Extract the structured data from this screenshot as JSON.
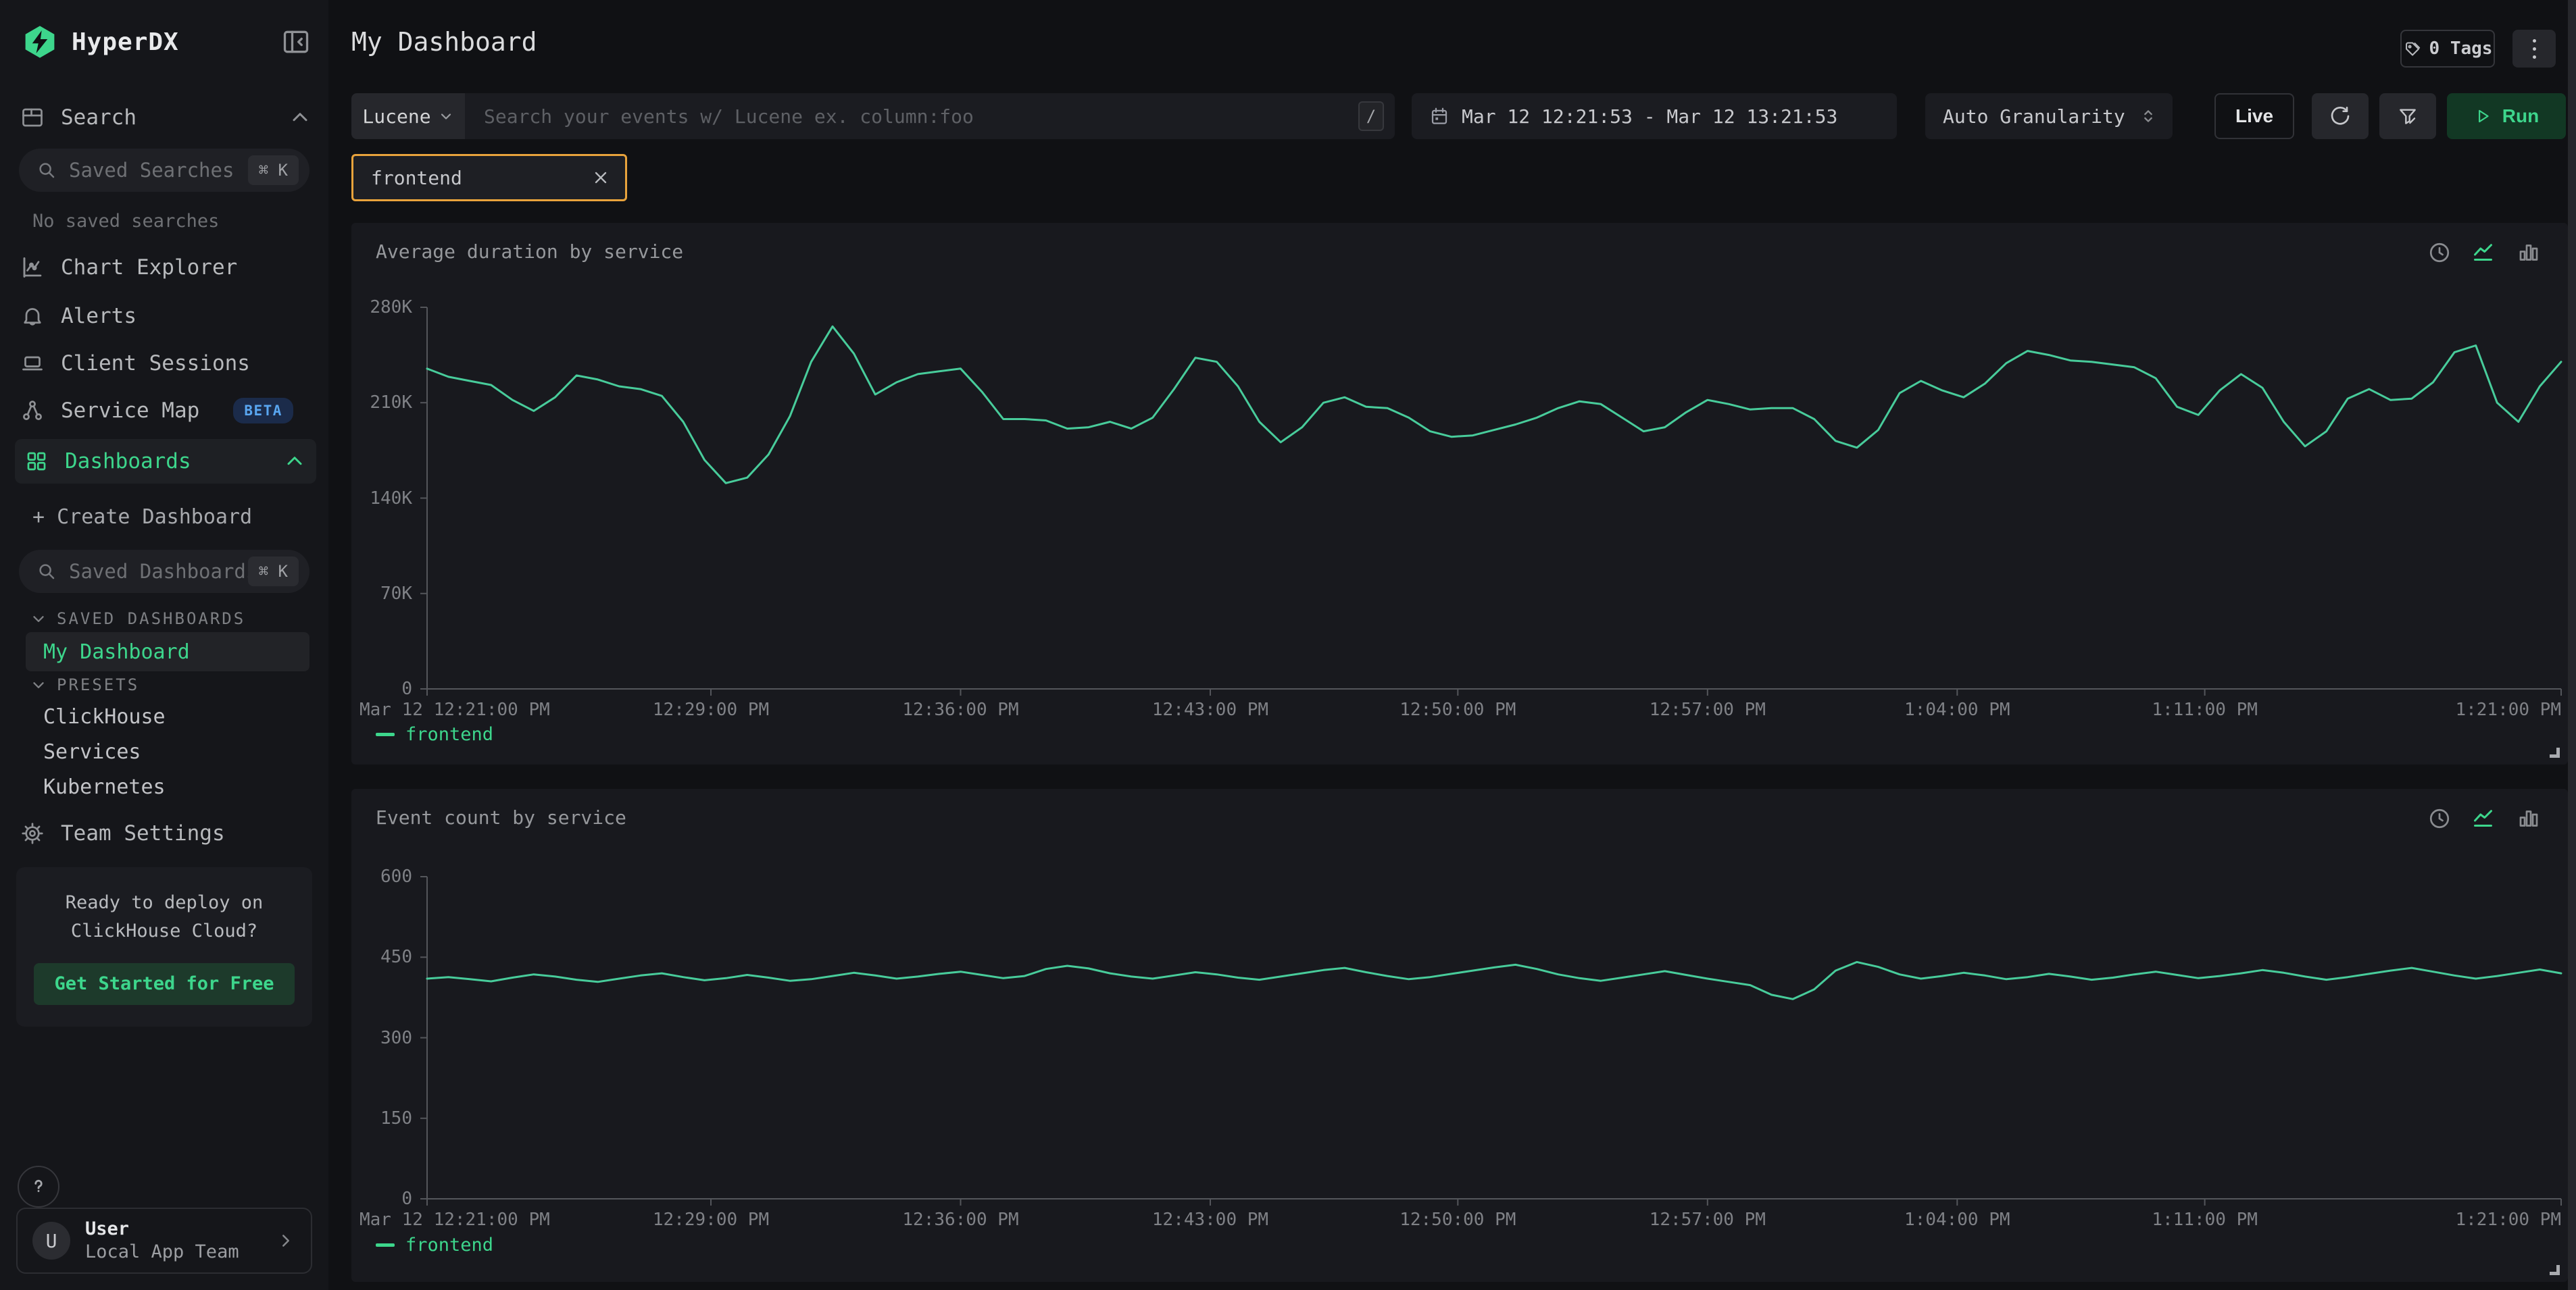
{
  "app": {
    "name": "HyperDX"
  },
  "sidebar": {
    "search_section": "Search",
    "saved_searches_placeholder": "Saved Searches",
    "shortcut": "⌘ K",
    "no_saved_searches": "No saved searches",
    "items": [
      {
        "label": "Chart Explorer"
      },
      {
        "label": "Alerts"
      },
      {
        "label": "Client Sessions"
      },
      {
        "label": "Service Map",
        "badge": "BETA"
      },
      {
        "label": "Dashboards"
      }
    ],
    "create_dashboard": "+ Create Dashboard",
    "saved_dashboards_placeholder": "Saved Dashboards",
    "sections": {
      "saved": "SAVED DASHBOARDS",
      "presets": "PRESETS"
    },
    "saved_dashboards": [
      "My Dashboard"
    ],
    "presets": [
      "ClickHouse",
      "Services",
      "Kubernetes"
    ],
    "team_settings": "Team Settings",
    "promo": {
      "text": "Ready to deploy on ClickHouse Cloud?",
      "cta": "Get Started for Free"
    },
    "user": {
      "initial": "U",
      "name": "User",
      "team": "Local App Team"
    }
  },
  "header": {
    "title": "My Dashboard",
    "tags_button": "0 Tags"
  },
  "toolbar": {
    "language": "Lucene",
    "search_placeholder": "Search your events w/ Lucene ex. column:foo",
    "slash_shortcut": "/",
    "time_range": "Mar 12 12:21:53 - Mar 12 13:21:53",
    "granularity": "Auto Granularity",
    "live": "Live",
    "run": "Run"
  },
  "filter_chip": {
    "value": "frontend"
  },
  "colors": {
    "accent_green": "#3DD68C",
    "line_green": "#48CC9B",
    "chip_orange": "#E8A33C",
    "beta_blue": "#59A6F0"
  },
  "chart_data": [
    {
      "type": "line",
      "title": "Average duration by service",
      "legend_position": "bottom-left",
      "grid": false,
      "ylim": [
        0,
        280
      ],
      "y_unit": "K",
      "y_ticks": [
        "280K",
        "210K",
        "140K",
        "70K",
        "0"
      ],
      "x_ticks": [
        "Mar 12 12:21:00 PM",
        "12:29:00 PM",
        "12:36:00 PM",
        "12:43:00 PM",
        "12:50:00 PM",
        "12:57:00 PM",
        "1:04:00 PM",
        "1:11:00 PM",
        "1:21:00 PM"
      ],
      "line_color": "#48CC9B",
      "series": [
        {
          "name": "frontend",
          "values": [
            235,
            229,
            226,
            223,
            212,
            204,
            214,
            230,
            227,
            222,
            220,
            215,
            196,
            168,
            151,
            155,
            172,
            200,
            240,
            266,
            246,
            216,
            225,
            231,
            233,
            235,
            218,
            198,
            198,
            197,
            191,
            192,
            196,
            191,
            199,
            220,
            243,
            240,
            222,
            196,
            181,
            192,
            210,
            214,
            207,
            206,
            199,
            189,
            185,
            186,
            190,
            194,
            199,
            206,
            211,
            209,
            199,
            189,
            192,
            203,
            212,
            209,
            205,
            206,
            206,
            198,
            182,
            177,
            190,
            217,
            226,
            219,
            214,
            224,
            239,
            248,
            245,
            241,
            240,
            238,
            236,
            228,
            207,
            201,
            219,
            231,
            221,
            196,
            178,
            189,
            213,
            220,
            212,
            213,
            225,
            247,
            252,
            210,
            196,
            222,
            240
          ]
        }
      ]
    },
    {
      "type": "line",
      "title": "Event count by service",
      "legend_position": "bottom-left",
      "grid": false,
      "ylim": [
        0,
        600
      ],
      "y_unit": "",
      "y_ticks": [
        "600",
        "450",
        "300",
        "150",
        "0"
      ],
      "x_ticks": [
        "Mar 12 12:21:00 PM",
        "12:29:00 PM",
        "12:36:00 PM",
        "12:43:00 PM",
        "12:50:00 PM",
        "12:57:00 PM",
        "1:04:00 PM",
        "1:11:00 PM",
        "1:21:00 PM"
      ],
      "line_color": "#48CC9B",
      "series": [
        {
          "name": "frontend",
          "values": [
            410,
            413,
            409,
            405,
            412,
            418,
            414,
            408,
            404,
            410,
            416,
            420,
            413,
            407,
            411,
            417,
            412,
            406,
            409,
            415,
            421,
            416,
            410,
            414,
            419,
            423,
            417,
            411,
            415,
            428,
            434,
            429,
            420,
            414,
            410,
            416,
            422,
            418,
            412,
            408,
            414,
            420,
            426,
            430,
            422,
            415,
            409,
            413,
            419,
            425,
            431,
            436,
            428,
            418,
            411,
            406,
            412,
            418,
            424,
            417,
            410,
            404,
            398,
            380,
            372,
            390,
            425,
            441,
            432,
            418,
            410,
            415,
            421,
            416,
            409,
            413,
            419,
            414,
            408,
            412,
            418,
            423,
            417,
            411,
            415,
            420,
            426,
            421,
            414,
            408,
            413,
            419,
            425,
            430,
            423,
            416,
            410,
            415,
            421,
            427,
            420
          ]
        }
      ]
    }
  ]
}
